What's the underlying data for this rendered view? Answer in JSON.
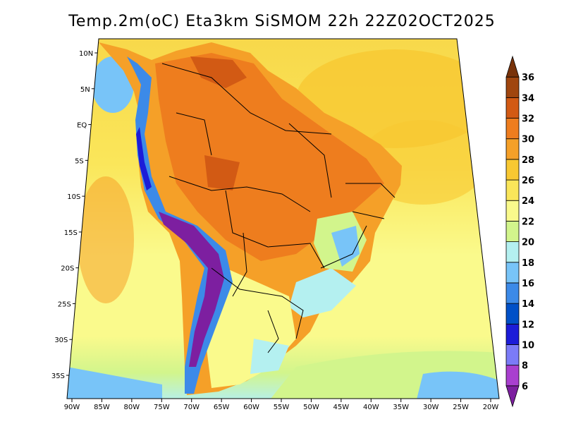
{
  "title": "Temp.2m(oC) Eta3km SiSMOM 22h 22Z02OCT2025",
  "map": {
    "lon_range": [
      -90,
      -20
    ],
    "lat_range": [
      -37,
      11
    ],
    "lon_ticks": [
      {
        "value": -90,
        "label": "90W"
      },
      {
        "value": -85,
        "label": "85W"
      },
      {
        "value": -80,
        "label": "80W"
      },
      {
        "value": -75,
        "label": "75W"
      },
      {
        "value": -70,
        "label": "70W"
      },
      {
        "value": -65,
        "label": "65W"
      },
      {
        "value": -60,
        "label": "60W"
      },
      {
        "value": -55,
        "label": "55W"
      },
      {
        "value": -50,
        "label": "50W"
      },
      {
        "value": -45,
        "label": "45W"
      },
      {
        "value": -40,
        "label": "40W"
      },
      {
        "value": -35,
        "label": "35W"
      },
      {
        "value": -30,
        "label": "30W"
      },
      {
        "value": -25,
        "label": "25W"
      },
      {
        "value": -20,
        "label": "20W"
      }
    ],
    "lat_ticks": [
      {
        "value": 10,
        "label": "10N"
      },
      {
        "value": 5,
        "label": "5N"
      },
      {
        "value": 0,
        "label": "EQ"
      },
      {
        "value": -5,
        "label": "5S"
      },
      {
        "value": -10,
        "label": "10S"
      },
      {
        "value": -15,
        "label": "15S"
      },
      {
        "value": -20,
        "label": "20S"
      },
      {
        "value": -25,
        "label": "25S"
      },
      {
        "value": -30,
        "label": "30S"
      },
      {
        "value": -35,
        "label": "35S"
      }
    ]
  },
  "colorbar": {
    "labels": [
      "6",
      "8",
      "10",
      "12",
      "14",
      "16",
      "18",
      "20",
      "22",
      "24",
      "26",
      "28",
      "30",
      "32",
      "34",
      "36"
    ],
    "colors": [
      "#7d1fa0",
      "#a93fcf",
      "#7b7bf7",
      "#1c1cd8",
      "#0050c8",
      "#3c8ae8",
      "#78c4f8",
      "#b4f0f0",
      "#d2f58c",
      "#fafa8c",
      "#fae65a",
      "#f8c832",
      "#f5a028",
      "#ee7d1e",
      "#d25a14",
      "#a0460f",
      "#78320a"
    ]
  },
  "colors": {
    "ocean_north": "#f8d84a",
    "ocean_south": "#fafa8c",
    "ocean_far_south": "#d2f58c",
    "land_hot": "#ee7d1e",
    "land_warm": "#f5a028",
    "andes_cold": "#7d1fa0",
    "andes_cool": "#3c8ae8",
    "south_cool": "#78c4f8"
  }
}
